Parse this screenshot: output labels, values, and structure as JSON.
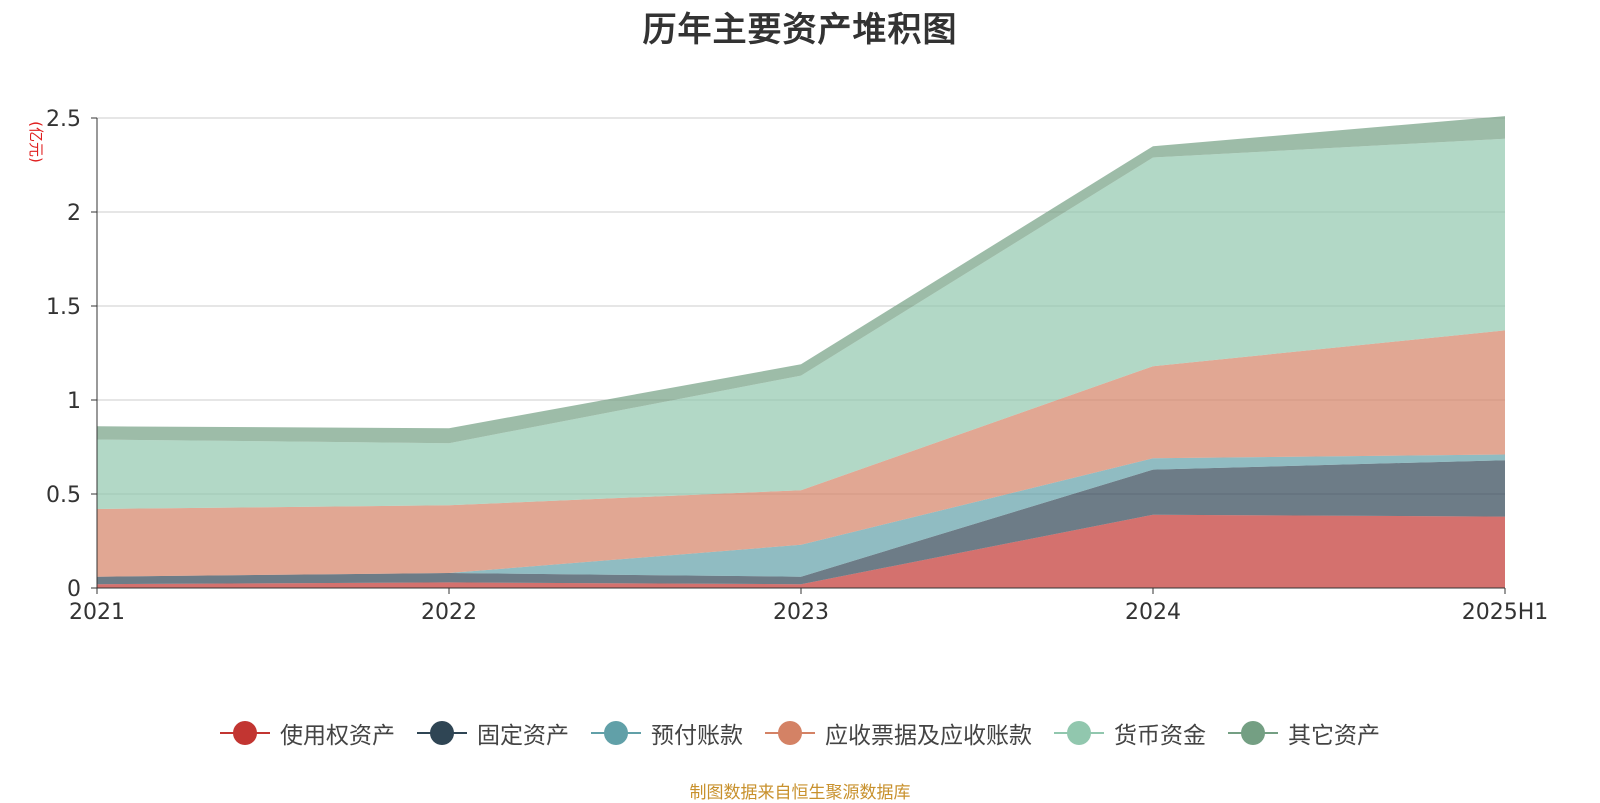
{
  "chart_data": {
    "type": "area",
    "stacked": true,
    "title": "历年主要资产堆积图",
    "ylabel": "(亿元)",
    "xlabel": "",
    "categories": [
      "2021",
      "2022",
      "2023",
      "2024",
      "2025H1"
    ],
    "ylim": [
      0,
      2.5
    ],
    "yticks": [
      "0",
      "0.5",
      "1",
      "1.5",
      "2",
      "2.5"
    ],
    "grid": true,
    "legend_position": "bottom",
    "series": [
      {
        "name": "使用权资产",
        "color": "#c23531",
        "values": [
          0.02,
          0.03,
          0.02,
          0.39,
          0.38
        ]
      },
      {
        "name": "固定资产",
        "color": "#2f4554",
        "values": [
          0.04,
          0.05,
          0.04,
          0.24,
          0.3
        ]
      },
      {
        "name": "预付账款",
        "color": "#61a0a8",
        "values": [
          0.0,
          0.0,
          0.17,
          0.06,
          0.03
        ]
      },
      {
        "name": "应收票据及应收账款",
        "color": "#d48265",
        "values": [
          0.36,
          0.36,
          0.29,
          0.49,
          0.66
        ]
      },
      {
        "name": "货币资金",
        "color": "#91c7ae",
        "values": [
          0.37,
          0.33,
          0.61,
          1.11,
          1.02
        ]
      },
      {
        "name": "其它资产",
        "color": "#749f83",
        "values": [
          0.07,
          0.08,
          0.06,
          0.06,
          0.12
        ]
      }
    ],
    "source_note": "制图数据来自恒生聚源数据库"
  }
}
